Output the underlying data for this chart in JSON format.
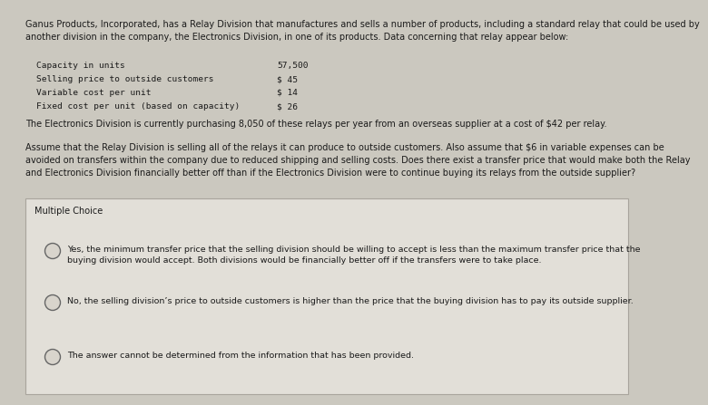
{
  "bg_color": "#cbc8bf",
  "box_bg": "#e2dfd8",
  "box_border": "#a8a49c",
  "upper_bg": "#cbc8bf",
  "title_text": "Ganus Products, Incorporated, has a Relay Division that manufactures and sells a number of products, including a standard relay that could be used by\nanother division in the company, the Electronics Division, in one of its products. Data concerning that relay appear below:",
  "table_labels": [
    "Capacity in units",
    "Selling price to outside customers",
    "Variable cost per unit",
    "Fixed cost per unit (based on capacity)"
  ],
  "table_values": [
    "57,500",
    "$ 45",
    "$ 14",
    "$ 26"
  ],
  "electronics_text": "The Electronics Division is currently purchasing 8,050 of these relays per year from an overseas supplier at a cost of $42 per relay.",
  "assume_text": "Assume that the Relay Division is selling all of the relays it can produce to outside customers. Also assume that $6 in variable expenses can be\navoided on transfers within the company due to reduced shipping and selling costs. Does there exist a transfer price that would make both the Relay\nand Electronics Division financially better off than if the Electronics Division were to continue buying its relays from the outside supplier?",
  "multiple_choice_label": "Multiple Choice",
  "option_a": "Yes, the minimum transfer price that the selling division should be willing to accept is less than the maximum transfer price that the\nbuying division would accept. Both divisions would be financially better off if the transfers were to take place.",
  "option_b": "No, the selling division’s price to outside customers is higher than the price that the buying division has to pay its outside supplier.",
  "option_c": "The answer cannot be determined from the information that has been provided.",
  "text_color": "#1a1a1a",
  "mono_font": "monospace",
  "body_font": "DejaVu Sans",
  "title_fontsize": 7.0,
  "table_fontsize": 6.8,
  "body_fontsize": 7.0,
  "mc_fontsize": 7.0,
  "option_fontsize": 6.8
}
